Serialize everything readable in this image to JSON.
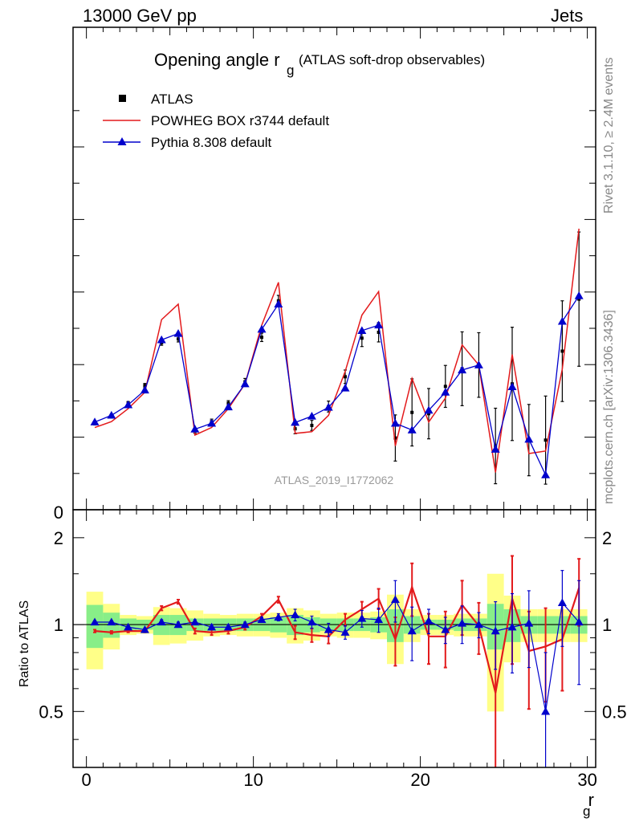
{
  "header": {
    "left": "13000 GeV pp",
    "right": "Jets"
  },
  "side_text": {
    "rivet": "Rivet 3.1.10, ≥ 2.4M events",
    "mcplots": "mcplots.cern.ch [arXiv:1306.3436]"
  },
  "chart_data": [
    {
      "type": "line",
      "panel": "main",
      "title": "Opening angle r",
      "title_sub": "g",
      "title_suffix": "(ATLAS soft-drop observables)",
      "watermark": "ATLAS_2019_I1772062",
      "y_tick_label": "0",
      "xlim": [
        -0.8,
        30.5
      ],
      "ylim": [
        0,
        1.15
      ],
      "legend": [
        "ATLAS",
        "POWHEG BOX r3744 default",
        "Pythia 8.308 default"
      ],
      "legend_position": "top-left",
      "colors": {
        "data": "#000000",
        "powheg": "#e31a1c",
        "pythia": "#0000cc"
      },
      "x": [
        0.5,
        1.5,
        2.5,
        3.5,
        4.5,
        5.5,
        6.5,
        7.5,
        8.5,
        9.5,
        10.5,
        11.5,
        12.5,
        13.5,
        14.5,
        15.5,
        16.5,
        17.5,
        18.5,
        19.5,
        20.5,
        21.5,
        22.5,
        23.5,
        24.5,
        25.5,
        26.5,
        27.5,
        28.5,
        29.5
      ],
      "series": [
        {
          "name": "ATLAS",
          "values": [
            0.206,
            0.223,
            0.254,
            0.296,
            0.398,
            0.407,
            0.188,
            0.21,
            0.254,
            0.305,
            0.411,
            0.498,
            0.193,
            0.201,
            0.246,
            0.317,
            0.409,
            0.423,
            0.171,
            0.232,
            0.229,
            0.294,
            0.336,
            0.345,
            0.152,
            0.3,
            0.166,
            0.166,
            0.378,
            0.502
          ],
          "errors": [
            0.004,
            0.004,
            0.004,
            0.005,
            0.006,
            0.007,
            0.006,
            0.006,
            0.006,
            0.008,
            0.01,
            0.013,
            0.012,
            0.012,
            0.013,
            0.016,
            0.02,
            0.023,
            0.055,
            0.08,
            0.06,
            0.05,
            0.088,
            0.077,
            0.09,
            0.135,
            0.085,
            0.105,
            0.12,
            0.16
          ]
        },
        {
          "name": "POWHEG BOX r3744 default",
          "values": [
            0.196,
            0.21,
            0.241,
            0.28,
            0.453,
            0.49,
            0.178,
            0.196,
            0.241,
            0.3,
            0.44,
            0.542,
            0.182,
            0.186,
            0.225,
            0.33,
            0.464,
            0.52,
            0.152,
            0.313,
            0.209,
            0.266,
            0.393,
            0.345,
            0.089,
            0.37,
            0.134,
            0.14,
            0.335,
            0.67
          ]
        },
        {
          "name": "Pythia 8.308 default",
          "values": [
            0.209,
            0.225,
            0.25,
            0.285,
            0.405,
            0.42,
            0.192,
            0.206,
            0.245,
            0.3,
            0.43,
            0.49,
            0.208,
            0.223,
            0.244,
            0.29,
            0.427,
            0.44,
            0.206,
            0.19,
            0.237,
            0.28,
            0.333,
            0.345,
            0.144,
            0.293,
            0.168,
            0.083,
            0.449,
            0.51
          ]
        }
      ]
    },
    {
      "type": "line",
      "panel": "ratio",
      "ylabel": "Ratio to ATLAS",
      "xlabel": "r",
      "xlabel_sub": "g",
      "xlim": [
        -0.8,
        30.5
      ],
      "ylim": [
        0.32,
        2.5
      ],
      "x_ticks": [
        "0",
        "10",
        "20",
        "30"
      ],
      "y_ticks": [
        "0.5",
        "1",
        "2"
      ],
      "reference_line": 1,
      "band_colors": {
        "inner": "#88ee88",
        "outer": "#ffff88"
      },
      "x": [
        0.5,
        1.5,
        2.5,
        3.5,
        4.5,
        5.5,
        6.5,
        7.5,
        8.5,
        9.5,
        10.5,
        11.5,
        12.5,
        13.5,
        14.5,
        15.5,
        16.5,
        17.5,
        18.5,
        19.5,
        20.5,
        21.5,
        22.5,
        23.5,
        24.5,
        25.5,
        26.5,
        27.5,
        28.5,
        29.5
      ],
      "band_inner": [
        0.17,
        0.1,
        0.05,
        0.04,
        0.08,
        0.08,
        0.05,
        0.05,
        0.05,
        0.05,
        0.05,
        0.06,
        0.08,
        0.06,
        0.05,
        0.05,
        0.05,
        0.06,
        0.13,
        0.07,
        0.04,
        0.04,
        0.05,
        0.05,
        0.18,
        0.13,
        0.07,
        0.07,
        0.07,
        0.07
      ],
      "band_outer": [
        0.3,
        0.18,
        0.08,
        0.07,
        0.15,
        0.14,
        0.12,
        0.09,
        0.08,
        0.09,
        0.09,
        0.1,
        0.14,
        0.12,
        0.09,
        0.1,
        0.1,
        0.11,
        0.27,
        0.13,
        0.08,
        0.08,
        0.09,
        0.09,
        0.5,
        0.26,
        0.13,
        0.13,
        0.13,
        0.13
      ],
      "series": [
        {
          "name": "POWHEG BOX r3744 default",
          "values": [
            0.95,
            0.94,
            0.95,
            0.95,
            1.14,
            1.2,
            0.95,
            0.94,
            0.95,
            0.98,
            1.07,
            1.22,
            0.94,
            0.92,
            0.91,
            1.04,
            1.13,
            1.23,
            0.89,
            1.35,
            0.91,
            0.91,
            1.17,
            0.99,
            0.58,
            1.23,
            0.81,
            0.84,
            0.89,
            1.34
          ],
          "errors": [
            0.01,
            0.01,
            0.01,
            0.01,
            0.02,
            0.02,
            0.02,
            0.02,
            0.02,
            0.02,
            0.02,
            0.03,
            0.05,
            0.05,
            0.05,
            0.05,
            0.07,
            0.1,
            0.17,
            0.28,
            0.18,
            0.2,
            0.25,
            0.2,
            0.35,
            0.5,
            0.3,
            0.3,
            0.3,
            0.35
          ]
        },
        {
          "name": "Pythia 8.308 default",
          "values": [
            1.02,
            1.02,
            0.98,
            0.96,
            1.02,
            1.0,
            1.02,
            0.98,
            0.98,
            1.0,
            1.04,
            1.06,
            1.08,
            1.02,
            0.96,
            0.94,
            1.05,
            1.04,
            1.22,
            0.95,
            1.03,
            0.96,
            1.01,
            1.0,
            0.95,
            0.98,
            1.01,
            0.5,
            1.19,
            1.02
          ],
          "errors": [
            0.01,
            0.01,
            0.01,
            0.01,
            0.02,
            0.02,
            0.02,
            0.02,
            0.02,
            0.02,
            0.02,
            0.03,
            0.05,
            0.05,
            0.05,
            0.05,
            0.07,
            0.1,
            0.2,
            0.2,
            0.1,
            0.1,
            0.15,
            0.1,
            0.25,
            0.3,
            0.3,
            0.3,
            0.35,
            0.4
          ]
        }
      ]
    }
  ]
}
